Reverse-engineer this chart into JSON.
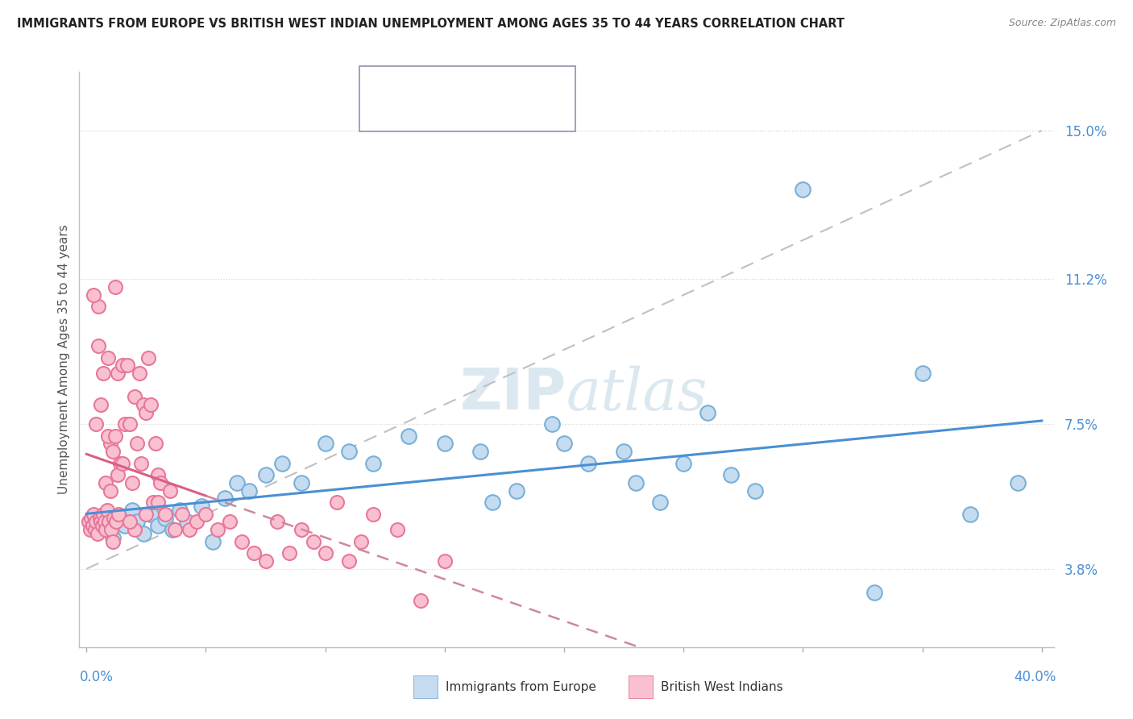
{
  "title": "IMMIGRANTS FROM EUROPE VS BRITISH WEST INDIAN UNEMPLOYMENT AMONG AGES 35 TO 44 YEARS CORRELATION CHART",
  "source": "Source: ZipAtlas.com",
  "ylabel": "Unemployment Among Ages 35 to 44 years",
  "ytick_values": [
    3.8,
    7.5,
    11.2,
    15.0
  ],
  "xlim": [
    0.0,
    40.0
  ],
  "ylim": [
    1.8,
    16.5
  ],
  "color_blue_fill": "#c5dcf0",
  "color_blue_edge": "#7ab0d8",
  "color_pink_fill": "#f9c0d0",
  "color_pink_edge": "#e8789a",
  "line_blue": "#4a8fd4",
  "line_pink": "#d96080",
  "line_pink_dash": "#d08898",
  "line_gray_dash": "#c0c0c0",
  "watermark_color": "#dce8f0",
  "blue_x": [
    0.4,
    0.6,
    0.9,
    1.1,
    1.4,
    1.6,
    1.9,
    2.1,
    2.4,
    2.7,
    3.0,
    3.3,
    3.6,
    3.9,
    4.2,
    4.8,
    5.3,
    5.8,
    6.3,
    6.8,
    7.5,
    8.2,
    9.0,
    10.0,
    11.0,
    12.0,
    13.5,
    15.0,
    16.5,
    18.0,
    19.5,
    21.0,
    22.5,
    24.0,
    26.0,
    28.0,
    30.0,
    33.0,
    35.0,
    37.0,
    39.0,
    27.0,
    25.0,
    23.0,
    20.0,
    17.0
  ],
  "blue_y": [
    4.8,
    5.0,
    5.2,
    4.6,
    5.1,
    4.9,
    5.3,
    5.0,
    4.7,
    5.2,
    4.9,
    5.1,
    4.8,
    5.3,
    5.0,
    5.4,
    4.5,
    5.6,
    6.0,
    5.8,
    6.2,
    6.5,
    6.0,
    7.0,
    6.8,
    6.5,
    7.2,
    7.0,
    6.8,
    5.8,
    7.5,
    6.5,
    6.8,
    5.5,
    7.8,
    5.8,
    13.5,
    3.2,
    8.8,
    5.2,
    6.0,
    6.2,
    6.5,
    6.0,
    7.0,
    5.5
  ],
  "pink_x": [
    0.1,
    0.15,
    0.2,
    0.25,
    0.3,
    0.35,
    0.4,
    0.45,
    0.5,
    0.55,
    0.6,
    0.65,
    0.7,
    0.75,
    0.8,
    0.85,
    0.9,
    0.95,
    1.0,
    1.05,
    1.1,
    1.15,
    1.2,
    1.25,
    1.3,
    1.35,
    1.4,
    1.5,
    1.6,
    1.7,
    1.8,
    1.9,
    2.0,
    2.1,
    2.2,
    2.3,
    2.4,
    2.5,
    2.6,
    2.7,
    2.8,
    2.9,
    3.0,
    3.1,
    3.3,
    3.5,
    3.7,
    4.0,
    4.3,
    4.6,
    5.0,
    5.5,
    6.0,
    6.5,
    7.0,
    7.5,
    8.0,
    8.5,
    9.0,
    9.5,
    10.0,
    10.5,
    11.0,
    11.5,
    12.0,
    13.0,
    14.0,
    15.0,
    0.3,
    0.5,
    0.7,
    0.9,
    1.1,
    1.3,
    1.5,
    0.4,
    0.6,
    0.8,
    1.0,
    1.2,
    2.5,
    3.0,
    2.0,
    1.8
  ],
  "pink_y": [
    5.0,
    4.8,
    5.1,
    4.9,
    5.2,
    4.8,
    5.0,
    4.7,
    10.5,
    5.1,
    5.0,
    4.9,
    5.2,
    5.0,
    4.8,
    5.3,
    9.2,
    5.0,
    7.0,
    4.8,
    4.5,
    5.1,
    11.0,
    5.0,
    8.8,
    5.2,
    6.5,
    9.0,
    7.5,
    9.0,
    7.5,
    6.0,
    8.2,
    7.0,
    8.8,
    6.5,
    8.0,
    7.8,
    9.2,
    8.0,
    5.5,
    7.0,
    6.2,
    6.0,
    5.2,
    5.8,
    4.8,
    5.2,
    4.8,
    5.0,
    5.2,
    4.8,
    5.0,
    4.5,
    4.2,
    4.0,
    5.0,
    4.2,
    4.8,
    4.5,
    4.2,
    5.5,
    4.0,
    4.5,
    5.2,
    4.8,
    3.0,
    4.0,
    10.8,
    9.5,
    8.8,
    7.2,
    6.8,
    6.2,
    6.5,
    7.5,
    8.0,
    6.0,
    5.8,
    7.2,
    5.2,
    5.5,
    4.8,
    5.0
  ]
}
